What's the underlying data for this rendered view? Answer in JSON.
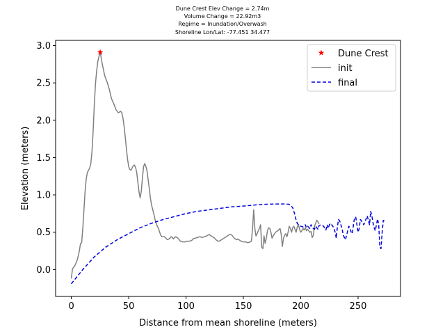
{
  "chart_data": {
    "type": "line",
    "title_lines": [
      "Dune Crest Elev Change = 2.74m",
      "Volume Change = 22.92m3",
      "Regime = Inundation/Overwash",
      "Shoreline Lon/Lat: -77.451 34.477"
    ],
    "xlabel": "Distance from mean shoreline (meters)",
    "ylabel": "Elevation (meters)",
    "xlim": [
      -13.7,
      287
    ],
    "ylim": [
      -0.36,
      3.07
    ],
    "xticks": [
      0,
      50,
      100,
      150,
      200,
      250
    ],
    "xtick_labels": [
      "0",
      "50",
      "100",
      "150",
      "200",
      "250"
    ],
    "yticks": [
      0.0,
      0.5,
      1.0,
      1.5,
      2.0,
      2.5,
      3.0
    ],
    "ytick_labels": [
      "0.0",
      "0.5",
      "1.0",
      "1.5",
      "2.0",
      "2.5",
      "3.0"
    ],
    "grid": false,
    "legend_position": "upper right",
    "legend": [
      "Dune Crest",
      "init",
      "final"
    ],
    "colors": {
      "init": "#808080",
      "final": "#0000dd",
      "dune_crest": "#ff0000"
    },
    "series": [
      {
        "name": "Dune Crest",
        "kind": "marker-star",
        "points": [
          [
            25.2,
            2.91
          ]
        ]
      },
      {
        "name": "init",
        "kind": "solid",
        "points": [
          [
            0,
            -0.12
          ],
          [
            1,
            0.01
          ],
          [
            3,
            0.05
          ],
          [
            5,
            0.12
          ],
          [
            6,
            0.18
          ],
          [
            7,
            0.25
          ],
          [
            8,
            0.35
          ],
          [
            9,
            0.36
          ],
          [
            10,
            0.55
          ],
          [
            11,
            0.8
          ],
          [
            12,
            1.05
          ],
          [
            13,
            1.22
          ],
          [
            14,
            1.3
          ],
          [
            16,
            1.36
          ],
          [
            17,
            1.42
          ],
          [
            18,
            1.58
          ],
          [
            19,
            1.85
          ],
          [
            20,
            2.2
          ],
          [
            21,
            2.48
          ],
          [
            22,
            2.65
          ],
          [
            23,
            2.78
          ],
          [
            24,
            2.85
          ],
          [
            25.2,
            2.91
          ],
          [
            26,
            2.84
          ],
          [
            27,
            2.75
          ],
          [
            28,
            2.68
          ],
          [
            29,
            2.6
          ],
          [
            31,
            2.52
          ],
          [
            33,
            2.42
          ],
          [
            35,
            2.29
          ],
          [
            37,
            2.22
          ],
          [
            39,
            2.14
          ],
          [
            41,
            2.1
          ],
          [
            43,
            2.12
          ],
          [
            44,
            2.1
          ],
          [
            45,
            2.03
          ],
          [
            46,
            1.92
          ],
          [
            47,
            1.78
          ],
          [
            48,
            1.62
          ],
          [
            49,
            1.48
          ],
          [
            50,
            1.38
          ],
          [
            51,
            1.34
          ],
          [
            52,
            1.33
          ],
          [
            53,
            1.36
          ],
          [
            54,
            1.39
          ],
          [
            55,
            1.4
          ],
          [
            56,
            1.37
          ],
          [
            57,
            1.3
          ],
          [
            58,
            1.17
          ],
          [
            59,
            1.04
          ],
          [
            60,
            0.96
          ],
          [
            61,
            1.05
          ],
          [
            62,
            1.23
          ],
          [
            63,
            1.38
          ],
          [
            64,
            1.42
          ],
          [
            65,
            1.38
          ],
          [
            66,
            1.32
          ],
          [
            67,
            1.2
          ],
          [
            68,
            1.08
          ],
          [
            69,
            0.95
          ],
          [
            70,
            0.86
          ],
          [
            71,
            0.8
          ],
          [
            72,
            0.74
          ],
          [
            73,
            0.67
          ],
          [
            74,
            0.62
          ],
          [
            75,
            0.58
          ],
          [
            76,
            0.55
          ],
          [
            77,
            0.5
          ],
          [
            78,
            0.46
          ],
          [
            79,
            0.44
          ],
          [
            80,
            0.44
          ],
          [
            81,
            0.44
          ],
          [
            82,
            0.43
          ],
          [
            83,
            0.41
          ],
          [
            84,
            0.4
          ],
          [
            85,
            0.41
          ],
          [
            86,
            0.42
          ],
          [
            87,
            0.44
          ],
          [
            88,
            0.43
          ],
          [
            89,
            0.41
          ],
          [
            90,
            0.43
          ],
          [
            91,
            0.44
          ],
          [
            92,
            0.43
          ],
          [
            93,
            0.42
          ],
          [
            94,
            0.4
          ],
          [
            95,
            0.38
          ],
          [
            96,
            0.38
          ],
          [
            97,
            0.37
          ],
          [
            99,
            0.37
          ],
          [
            101,
            0.38
          ],
          [
            103,
            0.38
          ],
          [
            105,
            0.39
          ],
          [
            106,
            0.41
          ],
          [
            108,
            0.42
          ],
          [
            110,
            0.43
          ],
          [
            112,
            0.44
          ],
          [
            114,
            0.43
          ],
          [
            116,
            0.44
          ],
          [
            118,
            0.45
          ],
          [
            119,
            0.46
          ],
          [
            120,
            0.47
          ],
          [
            121,
            0.46
          ],
          [
            122,
            0.45
          ],
          [
            123,
            0.44
          ],
          [
            124,
            0.43
          ],
          [
            125,
            0.42
          ],
          [
            126,
            0.4
          ],
          [
            127,
            0.39
          ],
          [
            128,
            0.38
          ],
          [
            129,
            0.38
          ],
          [
            130,
            0.39
          ],
          [
            132,
            0.41
          ],
          [
            134,
            0.43
          ],
          [
            136,
            0.45
          ],
          [
            138,
            0.47
          ],
          [
            139,
            0.47
          ],
          [
            140,
            0.46
          ],
          [
            141,
            0.44
          ],
          [
            142,
            0.42
          ],
          [
            143,
            0.41
          ],
          [
            144,
            0.4
          ],
          [
            145,
            0.41
          ],
          [
            146,
            0.4
          ],
          [
            147,
            0.39
          ],
          [
            148,
            0.38
          ],
          [
            150,
            0.37
          ],
          [
            152,
            0.37
          ],
          [
            154,
            0.36
          ],
          [
            156,
            0.37
          ],
          [
            157,
            0.38
          ],
          [
            158,
            0.55
          ],
          [
            159,
            0.8
          ],
          [
            160,
            0.55
          ],
          [
            161,
            0.45
          ],
          [
            162,
            0.48
          ],
          [
            163,
            0.52
          ],
          [
            164,
            0.55
          ],
          [
            165,
            0.6
          ],
          [
            166,
            0.3
          ],
          [
            167,
            0.28
          ],
          [
            168,
            0.45
          ],
          [
            169,
            0.35
          ],
          [
            170,
            0.42
          ],
          [
            171,
            0.52
          ],
          [
            172,
            0.56
          ],
          [
            173,
            0.55
          ],
          [
            174,
            0.5
          ],
          [
            175,
            0.42
          ],
          [
            176,
            0.45
          ],
          [
            178,
            0.5
          ],
          [
            180,
            0.52
          ],
          [
            182,
            0.55
          ],
          [
            183,
            0.47
          ],
          [
            184,
            0.31
          ],
          [
            185,
            0.42
          ],
          [
            186,
            0.46
          ],
          [
            187,
            0.48
          ],
          [
            188,
            0.44
          ],
          [
            189,
            0.5
          ],
          [
            190,
            0.58
          ],
          [
            191,
            0.55
          ],
          [
            192,
            0.5
          ],
          [
            193,
            0.56
          ],
          [
            194,
            0.58
          ],
          [
            195,
            0.54
          ],
          [
            196,
            0.5
          ],
          [
            197,
            0.57
          ],
          [
            198,
            0.6
          ],
          [
            199,
            0.54
          ],
          [
            200,
            0.5
          ],
          [
            201,
            0.52
          ],
          [
            202,
            0.55
          ],
          [
            203,
            0.53
          ],
          [
            204,
            0.56
          ],
          [
            205,
            0.52
          ],
          [
            206,
            0.54
          ],
          [
            207,
            0.52
          ],
          [
            208,
            0.5
          ],
          [
            209,
            0.51
          ],
          [
            210,
            0.43
          ],
          [
            211,
            0.46
          ],
          [
            212,
            0.58
          ],
          [
            213,
            0.62
          ],
          [
            214,
            0.66
          ],
          [
            215,
            0.64
          ],
          [
            216,
            0.61
          ]
        ]
      },
      {
        "name": "final",
        "kind": "dashed",
        "points": [
          [
            0,
            -0.19
          ],
          [
            10,
            0.0
          ],
          [
            20,
            0.17
          ],
          [
            30,
            0.3
          ],
          [
            40,
            0.4
          ],
          [
            50,
            0.48
          ],
          [
            60,
            0.56
          ],
          [
            70,
            0.62
          ],
          [
            80,
            0.67
          ],
          [
            90,
            0.71
          ],
          [
            100,
            0.75
          ],
          [
            110,
            0.78
          ],
          [
            120,
            0.8
          ],
          [
            130,
            0.82
          ],
          [
            140,
            0.84
          ],
          [
            150,
            0.85
          ],
          [
            160,
            0.865
          ],
          [
            170,
            0.875
          ],
          [
            180,
            0.878
          ],
          [
            185,
            0.878
          ],
          [
            190,
            0.875
          ],
          [
            193,
            0.83
          ],
          [
            195,
            0.73
          ],
          [
            196,
            0.66
          ],
          [
            197,
            0.62
          ],
          [
            198,
            0.6
          ],
          [
            200,
            0.58
          ],
          [
            202,
            0.57
          ],
          [
            204,
            0.6
          ],
          [
            205,
            0.56
          ],
          [
            206,
            0.58
          ],
          [
            208,
            0.55
          ],
          [
            209,
            0.6
          ],
          [
            210,
            0.56
          ],
          [
            212,
            0.54
          ],
          [
            213,
            0.58
          ],
          [
            215,
            0.54
          ],
          [
            216,
            0.59
          ],
          [
            218,
            0.6
          ],
          [
            220,
            0.58
          ],
          [
            221,
            0.55
          ],
          [
            222,
            0.53
          ],
          [
            223,
            0.6
          ],
          [
            224,
            0.55
          ],
          [
            225,
            0.6
          ],
          [
            226,
            0.62
          ],
          [
            227,
            0.6
          ],
          [
            228,
            0.58
          ],
          [
            229,
            0.55
          ],
          [
            230,
            0.5
          ],
          [
            231,
            0.42
          ],
          [
            232,
            0.58
          ],
          [
            233,
            0.67
          ],
          [
            234,
            0.65
          ],
          [
            235,
            0.6
          ],
          [
            236,
            0.55
          ],
          [
            237,
            0.47
          ],
          [
            238,
            0.43
          ],
          [
            239,
            0.4
          ],
          [
            240,
            0.46
          ],
          [
            241,
            0.52
          ],
          [
            242,
            0.58
          ],
          [
            243,
            0.55
          ],
          [
            244,
            0.5
          ],
          [
            245,
            0.48
          ],
          [
            246,
            0.6
          ],
          [
            247,
            0.7
          ],
          [
            248,
            0.7
          ],
          [
            249,
            0.6
          ],
          [
            250,
            0.5
          ],
          [
            251,
            0.55
          ],
          [
            252,
            0.67
          ],
          [
            253,
            0.65
          ],
          [
            254,
            0.62
          ],
          [
            255,
            0.6
          ],
          [
            256,
            0.64
          ],
          [
            257,
            0.68
          ],
          [
            258,
            0.72
          ],
          [
            259,
            0.66
          ],
          [
            260,
            0.6
          ],
          [
            261,
            0.78
          ],
          [
            262,
            0.72
          ],
          [
            263,
            0.63
          ],
          [
            264,
            0.56
          ],
          [
            265,
            0.52
          ],
          [
            266,
            0.6
          ],
          [
            267,
            0.68
          ],
          [
            268,
            0.6
          ],
          [
            269,
            0.3
          ],
          [
            270,
            0.28
          ],
          [
            271,
            0.5
          ],
          [
            272,
            0.66
          ],
          [
            273,
            0.65
          ]
        ]
      }
    ]
  }
}
